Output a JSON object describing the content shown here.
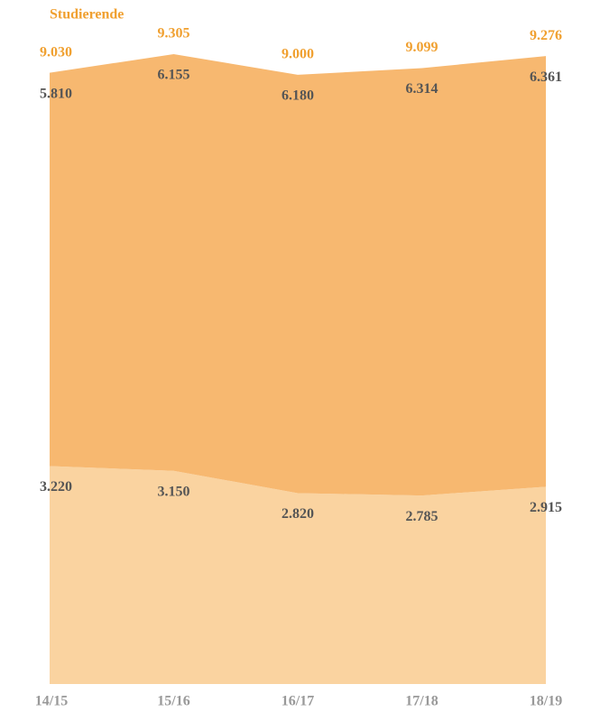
{
  "chart_data": {
    "type": "stacked-area",
    "title": "Studierende",
    "categories": [
      "14/15",
      "15/16",
      "16/17",
      "17/18",
      "18/19"
    ],
    "series": [
      {
        "color": "#fad3a0",
        "values": [
          3220,
          3150,
          2820,
          2785,
          2915
        ],
        "value_labels": [
          "3.220",
          "3.150",
          "2.820",
          "2.785",
          "2.915"
        ]
      },
      {
        "color": "#f7b870",
        "values": [
          5810,
          6155,
          6180,
          6314,
          6361
        ],
        "value_labels": [
          "5.810",
          "6.155",
          "6.180",
          "6.314",
          "6.361"
        ]
      }
    ],
    "totals": {
      "color": "#f0a030",
      "values": [
        9030,
        9305,
        9000,
        9099,
        9276
      ],
      "value_labels": [
        "9.030",
        "9.305",
        "9.000",
        "9.099",
        "9.276"
      ]
    }
  }
}
